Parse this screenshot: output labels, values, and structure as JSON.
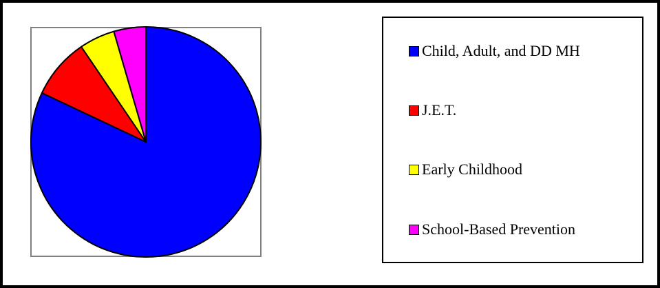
{
  "chart_data": {
    "type": "pie",
    "title": "",
    "categories": [
      "Child, Adult, and DD MH",
      "J.E.T.",
      "Early Childhood",
      "School-Based Prevention"
    ],
    "values": [
      82.0,
      8.5,
      5.0,
      4.5
    ],
    "colors": [
      "#0000ff",
      "#ff0000",
      "#ffff00",
      "#ff00ff"
    ],
    "start_angle": "12 o'clock",
    "direction": "clockwise",
    "legend": "right"
  }
}
